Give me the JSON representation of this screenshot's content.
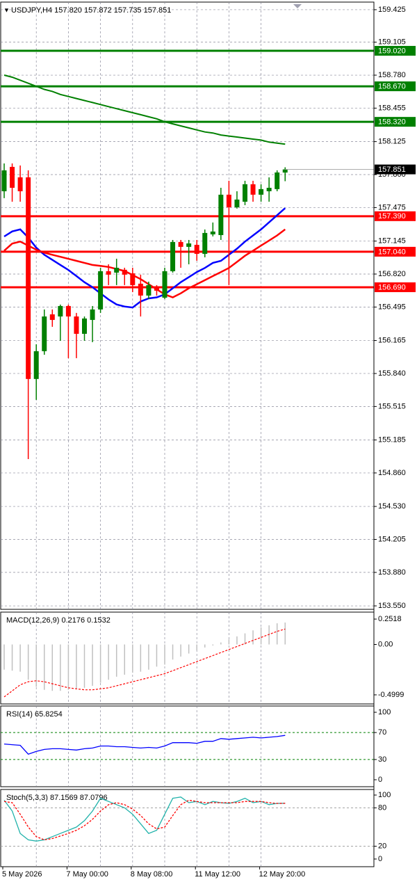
{
  "chart_data": [
    {
      "type": "candlestick",
      "title": "USDJPY,H4  157.820 157.872 157.735 157.851",
      "categories": [
        "5 May 2026",
        null,
        null,
        null,
        null,
        null,
        null,
        null,
        "7 May 00:00",
        null,
        null,
        null,
        null,
        null,
        null,
        null,
        "8 May 08:00",
        null,
        null,
        null,
        null,
        null,
        null,
        null,
        "11 May 12:00",
        null,
        null,
        null,
        null,
        null,
        null,
        null,
        "12 May 20:00",
        null,
        null,
        null
      ],
      "open": [
        157.636,
        157.876,
        157.773,
        157.773,
        155.786,
        156.06,
        156.423,
        156.402,
        156.505,
        156.402,
        156.231,
        156.368,
        156.471,
        156.848,
        156.834,
        156.862,
        156.827,
        156.725,
        156.608,
        156.697,
        156.587,
        156.848,
        157.136,
        157.088,
        157.108,
        157.019,
        157.211,
        157.204,
        157.602,
        157.478,
        157.533,
        157.705,
        157.602,
        157.636,
        157.657,
        157.82
      ],
      "high": [
        157.91,
        157.91,
        157.89,
        157.842,
        156.128,
        156.471,
        156.471,
        156.519,
        156.519,
        156.437,
        156.402,
        156.505,
        156.882,
        156.916,
        156.971,
        156.882,
        156.882,
        156.814,
        156.745,
        156.711,
        156.882,
        157.156,
        157.156,
        157.156,
        157.156,
        157.259,
        157.328,
        157.67,
        157.739,
        157.636,
        157.739,
        157.739,
        157.705,
        157.773,
        157.842,
        157.872
      ],
      "low": [
        157.568,
        157.533,
        157.533,
        154.997,
        155.58,
        156.025,
        156.3,
        156.162,
        155.991,
        155.991,
        156.162,
        156.149,
        156.437,
        156.711,
        156.711,
        156.711,
        156.642,
        156.402,
        156.574,
        156.608,
        156.574,
        156.834,
        156.882,
        156.916,
        156.951,
        156.985,
        157.191,
        157.156,
        156.711,
        157.465,
        157.499,
        157.533,
        157.533,
        157.533,
        157.636,
        157.735
      ],
      "close": [
        157.842,
        157.67,
        157.636,
        155.786,
        156.06,
        156.402,
        156.368,
        156.505,
        156.402,
        156.231,
        156.382,
        156.471,
        156.848,
        156.814,
        156.882,
        156.814,
        156.711,
        156.608,
        156.711,
        156.656,
        156.848,
        157.136,
        157.088,
        157.122,
        157.019,
        157.225,
        157.239,
        157.602,
        157.478,
        157.554,
        157.705,
        157.602,
        157.657,
        157.67,
        157.821,
        157.851
      ],
      "up_color": "#008000",
      "down_color": "#ff0000",
      "lines": [
        {
          "color": "#008000",
          "values": [
            158.78,
            158.76,
            158.73,
            158.7,
            158.67,
            158.64,
            158.62,
            158.59,
            158.57,
            158.55,
            158.53,
            158.51,
            158.49,
            158.47,
            158.45,
            158.43,
            158.41,
            158.39,
            158.37,
            158.35,
            158.32,
            158.3,
            158.28,
            158.26,
            158.24,
            158.22,
            158.21,
            158.19,
            158.18,
            158.17,
            158.16,
            158.15,
            158.14,
            158.12,
            158.11,
            158.1
          ]
        },
        {
          "color": "#0000ff",
          "values": [
            157.19,
            157.24,
            157.26,
            157.18,
            157.08,
            157.01,
            156.96,
            156.91,
            156.86,
            156.8,
            156.74,
            156.69,
            156.63,
            156.57,
            156.52,
            156.5,
            156.49,
            156.55,
            156.58,
            156.59,
            156.62,
            156.68,
            156.74,
            156.79,
            156.84,
            156.88,
            156.93,
            156.95,
            157.01,
            157.07,
            157.14,
            157.2,
            157.26,
            157.33,
            157.4,
            157.47
          ]
        },
        {
          "color": "#ff0000",
          "values": [
            157.05,
            157.12,
            157.14,
            157.1,
            157.06,
            157.03,
            157.01,
            156.99,
            156.97,
            156.95,
            156.93,
            156.91,
            156.9,
            156.89,
            156.87,
            156.85,
            156.81,
            156.77,
            156.72,
            156.67,
            156.62,
            156.59,
            156.63,
            156.68,
            156.72,
            156.76,
            156.8,
            156.84,
            156.88,
            156.94,
            157.0,
            157.05,
            157.1,
            157.15,
            157.2,
            157.26
          ]
        }
      ],
      "levels": [
        {
          "value": 159.02,
          "label": "159.020",
          "color": "#008000"
        },
        {
          "value": 158.67,
          "label": "158.670",
          "color": "#008000"
        },
        {
          "value": 158.32,
          "label": "158.320",
          "color": "#008000"
        },
        {
          "value": 157.39,
          "label": "157.390",
          "color": "#ff0000"
        },
        {
          "value": 157.04,
          "label": "157.040",
          "color": "#ff0000"
        },
        {
          "value": 156.69,
          "label": "156.690",
          "color": "#ff0000"
        }
      ],
      "last_price_color": "#000000",
      "ylim": [
        153.516,
        159.5
      ],
      "yticks": [
        159.425,
        159.105,
        {
          "value": 158.78,
          "label": "158.780"
        },
        158.455,
        158.125,
        {
          "value": 157.8,
          "label": "157.800"
        },
        157.475,
        157.145,
        {
          "value": 156.82,
          "label": "156.820"
        },
        156.495,
        156.165,
        {
          "value": 155.84,
          "label": "155.840"
        },
        155.515,
        155.185,
        {
          "value": 154.86,
          "label": "154.860"
        },
        {
          "value": 154.53,
          "label": "154.530"
        },
        154.205,
        {
          "value": 153.88,
          "label": "153.880"
        },
        {
          "value": 153.55,
          "label": "153.550"
        }
      ],
      "grid": true
    },
    {
      "type": "macd",
      "title": "MACD(12,26,9) 0.2176 0.1532",
      "values": [
        -0.25,
        -0.26,
        -0.27,
        -0.35,
        -0.42,
        -0.45,
        -0.46,
        -0.46,
        -0.45,
        -0.44,
        -0.43,
        -0.41,
        -0.38,
        -0.35,
        -0.32,
        -0.3,
        -0.28,
        -0.27,
        -0.25,
        -0.22,
        -0.2,
        -0.15,
        -0.12,
        -0.09,
        -0.06,
        -0.03,
        -0.01,
        0.02,
        0.05,
        0.08,
        0.11,
        0.14,
        0.17,
        0.19,
        0.21,
        0.2176
      ],
      "color": "#c0c0c0",
      "signal": {
        "color": "#ff0000",
        "values": [
          -0.52,
          -0.46,
          -0.4,
          -0.37,
          -0.36,
          -0.37,
          -0.39,
          -0.41,
          -0.43,
          -0.44,
          -0.45,
          -0.45,
          -0.44,
          -0.43,
          -0.41,
          -0.39,
          -0.37,
          -0.35,
          -0.33,
          -0.31,
          -0.29,
          -0.26,
          -0.23,
          -0.2,
          -0.17,
          -0.14,
          -0.11,
          -0.08,
          -0.05,
          -0.02,
          0.01,
          0.04,
          0.07,
          0.1,
          0.13,
          0.1532
        ]
      },
      "ylim": [
        -0.59,
        0.321
      ],
      "yticks": [
        0.2518,
        {
          "value": 0,
          "label": "0.00"
        },
        -0.4999
      ]
    },
    {
      "type": "line",
      "title": "RSI(14) 65.8254",
      "series": [
        {
          "color": "#0000ff",
          "values": [
            53,
            52,
            51,
            38,
            42,
            45,
            46,
            46,
            45,
            44,
            46,
            47,
            50,
            50,
            49,
            49,
            48,
            47,
            48,
            47,
            50,
            55,
            55,
            55,
            54,
            57,
            57,
            61,
            60,
            61,
            62,
            63,
            62,
            63,
            64,
            65.8254
          ]
        }
      ],
      "levels": [
        {
          "value": 70,
          "color": "#008000"
        },
        {
          "value": 30,
          "color": "#008000"
        }
      ],
      "ylim": [
        -10.3,
        109.3
      ],
      "yticks": [
        100,
        70,
        30,
        0
      ]
    },
    {
      "type": "line",
      "title": "Stoch(5,3,3) 87.1569 87.0796",
      "series": [
        {
          "color": "#20b2aa",
          "values": [
            92,
            75,
            40,
            30,
            28,
            30,
            35,
            40,
            45,
            50,
            60,
            75,
            95,
            90,
            85,
            80,
            70,
            55,
            40,
            45,
            70,
            95,
            97,
            88,
            90,
            85,
            90,
            88,
            87,
            90,
            95,
            88,
            90,
            85,
            87,
            87.1569
          ]
        },
        {
          "color": "#ff0000",
          "dashed": true,
          "values": [
            90,
            88,
            70,
            50,
            35,
            30,
            32,
            36,
            40,
            45,
            52,
            62,
            75,
            85,
            88,
            85,
            78,
            68,
            55,
            47,
            50,
            68,
            85,
            92,
            90,
            88,
            88,
            88,
            88,
            88,
            90,
            90,
            90,
            88,
            87,
            87.0796
          ]
        }
      ],
      "levels": [
        {
          "value": 80,
          "color": "#a0a0a0"
        },
        {
          "value": 20,
          "color": "#a0a0a0"
        }
      ],
      "ylim": [
        -12,
        108.7
      ],
      "yticks": [
        100,
        80,
        20,
        0
      ]
    }
  ]
}
